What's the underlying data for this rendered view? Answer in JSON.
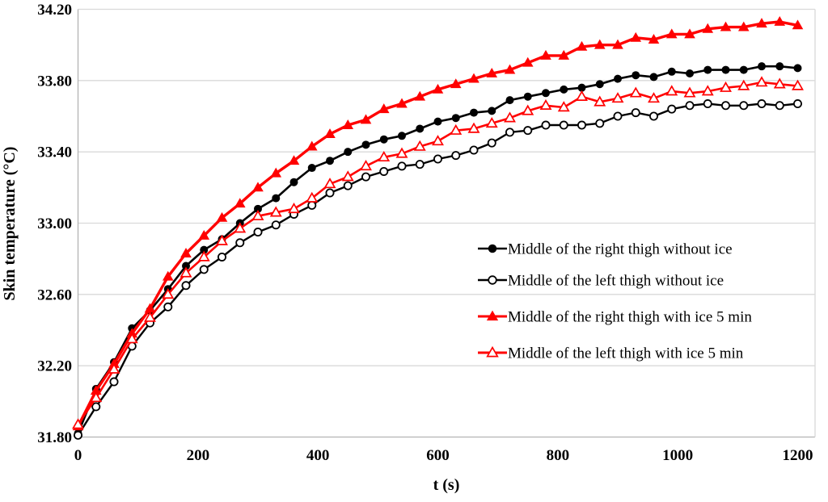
{
  "chart_data": {
    "type": "line",
    "title": "",
    "xlabel": "t (s)",
    "ylabel": "Skin temperature (°C)",
    "xlim": [
      0,
      1200
    ],
    "ylim": [
      31.8,
      34.2
    ],
    "xticks": [
      0,
      200,
      400,
      600,
      800,
      1000,
      1200
    ],
    "ytick_step": 0.4,
    "grid": "horizontal",
    "legend_position": "middle-right",
    "colors": {
      "black_series": "#000000",
      "red_series": "#ff0000",
      "gridline": "#d9d9d9",
      "axis_line": "#b3b3b3",
      "background": "#ffffff"
    },
    "x": [
      0,
      30,
      60,
      90,
      120,
      150,
      180,
      210,
      240,
      270,
      300,
      330,
      360,
      390,
      420,
      450,
      480,
      510,
      540,
      570,
      600,
      630,
      660,
      690,
      720,
      750,
      780,
      810,
      840,
      870,
      900,
      930,
      960,
      990,
      1020,
      1050,
      1080,
      1110,
      1140,
      1170,
      1200
    ],
    "series": [
      {
        "name": "Middle of the right thigh without ice",
        "color": "#000000",
        "marker": "circle-filled",
        "values": [
          31.82,
          32.07,
          32.22,
          32.41,
          32.51,
          32.63,
          32.76,
          32.85,
          32.91,
          33.0,
          33.08,
          33.14,
          33.23,
          33.31,
          33.35,
          33.4,
          33.44,
          33.47,
          33.49,
          33.53,
          33.57,
          33.59,
          33.62,
          33.63,
          33.69,
          33.71,
          33.73,
          33.75,
          33.76,
          33.78,
          33.81,
          33.83,
          33.82,
          33.85,
          33.84,
          33.86,
          33.86,
          33.86,
          33.88,
          33.88,
          33.87
        ]
      },
      {
        "name": "Middle of the left thigh without ice",
        "color": "#000000",
        "marker": "circle-open",
        "values": [
          31.81,
          31.97,
          32.11,
          32.31,
          32.44,
          32.53,
          32.65,
          32.74,
          32.81,
          32.89,
          32.95,
          32.99,
          33.05,
          33.1,
          33.17,
          33.21,
          33.26,
          33.29,
          33.32,
          33.33,
          33.36,
          33.38,
          33.41,
          33.45,
          33.51,
          33.52,
          33.55,
          33.55,
          33.55,
          33.56,
          33.6,
          33.62,
          33.6,
          33.64,
          33.66,
          33.67,
          33.66,
          33.66,
          33.67,
          33.66,
          33.67
        ]
      },
      {
        "name": "Middle of the right thigh with ice 5 min",
        "color": "#ff0000",
        "marker": "triangle-filled",
        "values": [
          31.86,
          32.06,
          32.21,
          32.38,
          32.52,
          32.7,
          32.83,
          32.93,
          33.03,
          33.11,
          33.2,
          33.28,
          33.35,
          33.43,
          33.5,
          33.55,
          33.58,
          33.64,
          33.67,
          33.71,
          33.75,
          33.78,
          33.81,
          33.84,
          33.86,
          33.9,
          33.94,
          33.94,
          33.99,
          34.0,
          34.0,
          34.04,
          34.03,
          34.06,
          34.06,
          34.09,
          34.1,
          34.1,
          34.12,
          34.13,
          34.11
        ]
      },
      {
        "name": "Middle of the left thigh with ice 5 min",
        "color": "#ff0000",
        "marker": "triangle-open",
        "values": [
          31.87,
          32.02,
          32.18,
          32.35,
          32.47,
          32.6,
          32.72,
          32.81,
          32.9,
          32.97,
          33.04,
          33.06,
          33.08,
          33.14,
          33.22,
          33.26,
          33.32,
          33.37,
          33.39,
          33.43,
          33.46,
          33.52,
          33.53,
          33.56,
          33.59,
          33.63,
          33.66,
          33.65,
          33.71,
          33.68,
          33.7,
          33.73,
          33.7,
          33.74,
          33.73,
          33.74,
          33.76,
          33.77,
          33.79,
          33.78,
          33.77
        ]
      }
    ]
  }
}
